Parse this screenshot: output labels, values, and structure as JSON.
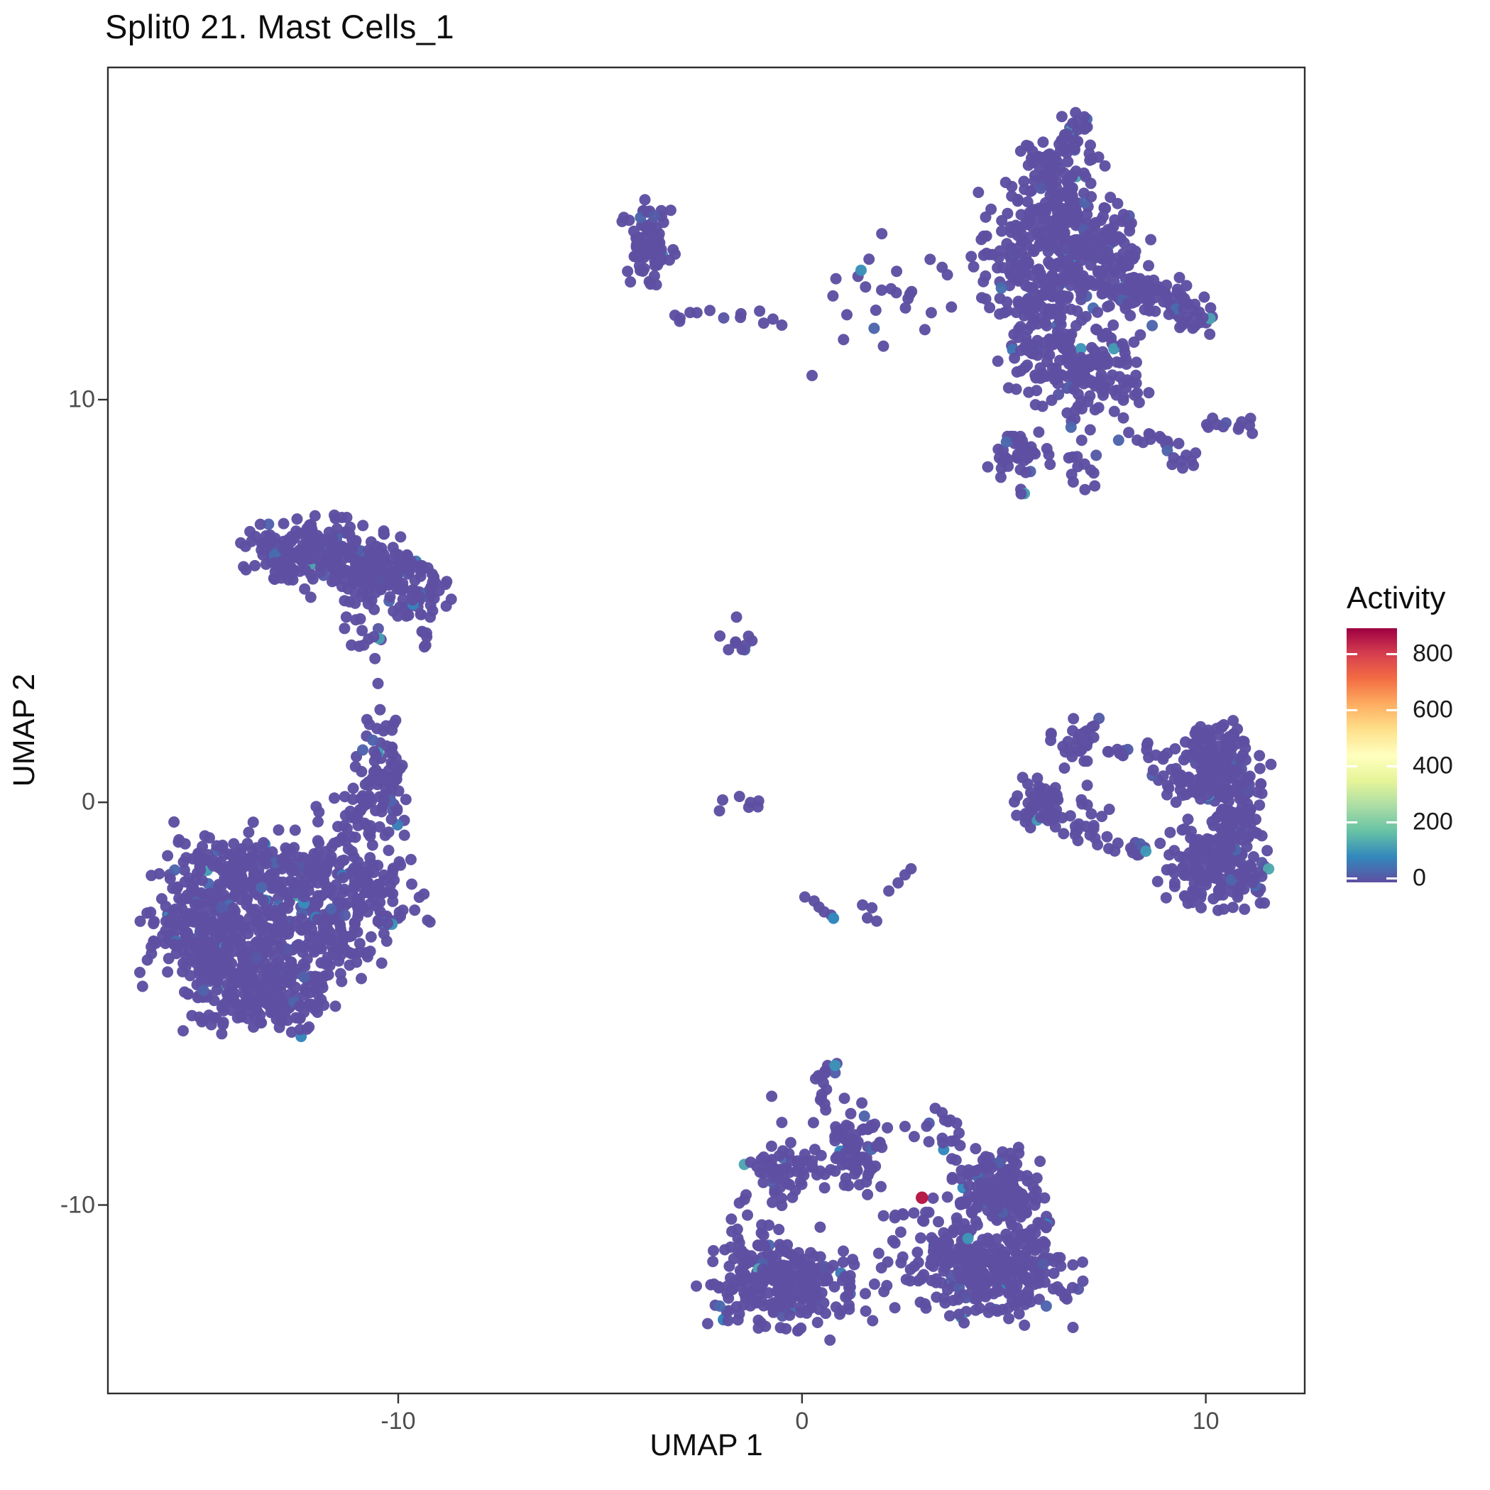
{
  "chart": {
    "title": "Split0 21. Mast Cells_1",
    "xlabel": "UMAP 1",
    "ylabel": "UMAP 2"
  },
  "legend": {
    "title": "Activity",
    "tick_values": [
      800,
      600,
      400,
      200,
      0
    ],
    "domain": [
      0,
      890
    ],
    "gradient_stops": [
      "#5E4FA2",
      "#3288BD",
      "#66C2A5",
      "#ABDDA4",
      "#E6F598",
      "#FFFFBF",
      "#FEE08B",
      "#FDAE61",
      "#F46D43",
      "#D53E4F",
      "#9E0142"
    ]
  },
  "chart_data": {
    "type": "scatter",
    "title": "Split0 21. Mast Cells_1",
    "xlabel": "UMAP 1",
    "ylabel": "UMAP 2",
    "color_label": "Activity",
    "x_ticks": [
      -10,
      0,
      10
    ],
    "y_ticks": [
      -10,
      0,
      10
    ],
    "x_range": [
      -17.19,
      12.45
    ],
    "y_range": [
      -14.68,
      18.25
    ],
    "grid": false,
    "background_activity": 0,
    "point_color_zero": "#5E4FA2",
    "max_point": {
      "x": 2.97,
      "y": -9.82,
      "activity": 850
    },
    "low_activity_point": {
      "x": 0.78,
      "y": -2.88,
      "activity": 90
    },
    "clusters": [
      {
        "name": "top-right-tip",
        "cx": 6.65,
        "cy": 16.5,
        "sx": 0.3,
        "sy": 0.4,
        "n": 28,
        "rot": 0
      },
      {
        "name": "top-right-upper",
        "cx": 6.45,
        "cy": 15.1,
        "sx": 0.55,
        "sy": 0.7,
        "n": 150,
        "rot": 10
      },
      {
        "name": "top-right-mid",
        "cx": 6.05,
        "cy": 13.3,
        "sx": 0.8,
        "sy": 0.95,
        "n": 250,
        "rot": 12
      },
      {
        "name": "top-right-mid-right",
        "cx": 7.5,
        "cy": 13.6,
        "sx": 0.5,
        "sy": 0.55,
        "n": 90,
        "rot": 0
      },
      {
        "name": "top-right-arm",
        "cx": 8.6,
        "cy": 12.55,
        "sx": 0.6,
        "sy": 0.3,
        "n": 85,
        "rot": -8
      },
      {
        "name": "top-right-arm-tip",
        "cx": 9.8,
        "cy": 12.1,
        "sx": 0.3,
        "sy": 0.35,
        "n": 20,
        "rot": 0
      },
      {
        "name": "top-right-lower",
        "cx": 7.0,
        "cy": 10.75,
        "sx": 0.75,
        "sy": 0.6,
        "n": 155,
        "rot": -10
      },
      {
        "name": "top-right-lower-left",
        "cx": 5.7,
        "cy": 11.5,
        "sx": 0.45,
        "sy": 0.55,
        "n": 50,
        "rot": 0
      },
      {
        "name": "top-right-foot-left",
        "cx": 5.3,
        "cy": 8.6,
        "sx": 0.38,
        "sy": 0.38,
        "n": 40,
        "rot": 0
      },
      {
        "name": "top-right-foot-mid",
        "cx": 6.85,
        "cy": 8.3,
        "sx": 0.22,
        "sy": 0.33,
        "n": 13,
        "rot": 0
      },
      {
        "name": "top-right-foot-chain",
        "cx": 8.55,
        "cy": 9.1,
        "sx": 0.4,
        "sy": 0.14,
        "n": 10,
        "rot": 0
      },
      {
        "name": "top-right-far-chain",
        "cx": 10.6,
        "cy": 9.4,
        "sx": 0.5,
        "sy": 0.12,
        "n": 12,
        "rot": -6
      },
      {
        "name": "top-right-foot-right",
        "cx": 9.4,
        "cy": 8.55,
        "sx": 0.28,
        "sy": 0.28,
        "n": 12,
        "rot": 0
      },
      {
        "name": "top-right-left-fringe",
        "cx": 1.7,
        "cy": 12.7,
        "sx": 0.8,
        "sy": 0.75,
        "n": 24,
        "rot": 0
      },
      {
        "name": "top-mid-blob",
        "cx": -3.85,
        "cy": 13.85,
        "sx": 0.3,
        "sy": 0.52,
        "n": 80,
        "rot": 0
      },
      {
        "name": "top-mid-chain",
        "cx": -2.6,
        "cy": 12.1,
        "sx": 0.5,
        "sy": 0.09,
        "n": 9,
        "rot": 0
      },
      {
        "name": "left-upper-a",
        "cx": -12.75,
        "cy": 6.3,
        "sx": 0.5,
        "sy": 0.42,
        "n": 80,
        "rot": -10
      },
      {
        "name": "left-upper-b",
        "cx": -11.4,
        "cy": 6.05,
        "sx": 0.75,
        "sy": 0.45,
        "n": 160,
        "rot": -10
      },
      {
        "name": "left-upper-c",
        "cx": -10.05,
        "cy": 5.55,
        "sx": 0.55,
        "sy": 0.42,
        "n": 100,
        "rot": -12
      },
      {
        "name": "left-upper-tip",
        "cx": -9.2,
        "cy": 5.2,
        "sx": 0.3,
        "sy": 0.3,
        "n": 28,
        "rot": 0
      },
      {
        "name": "left-upper-tail",
        "cx": -11.0,
        "cy": 4.35,
        "sx": 0.3,
        "sy": 0.5,
        "n": 18,
        "rot": 0
      },
      {
        "name": "left-upper-pair",
        "cx": -9.35,
        "cy": 4.0,
        "sx": 0.28,
        "sy": 0.2,
        "n": 6,
        "rot": 0
      },
      {
        "name": "left-arm-top",
        "cx": -10.35,
        "cy": 1.55,
        "sx": 0.22,
        "sy": 0.3,
        "n": 16,
        "rot": 0
      },
      {
        "name": "left-arm-mid",
        "cx": -10.25,
        "cy": 0.75,
        "sx": 0.35,
        "sy": 0.3,
        "n": 40,
        "rot": 0
      },
      {
        "name": "left-arm-low",
        "cx": -10.8,
        "cy": -0.3,
        "sx": 0.45,
        "sy": 0.35,
        "n": 60,
        "rot": 20
      },
      {
        "name": "left-main-a",
        "cx": -14.35,
        "cy": -1.7,
        "sx": 0.75,
        "sy": 0.5,
        "n": 130,
        "rot": 0
      },
      {
        "name": "left-main-b",
        "cx": -12.6,
        "cy": -1.85,
        "sx": 0.8,
        "sy": 0.55,
        "n": 150,
        "rot": 0
      },
      {
        "name": "left-main-c",
        "cx": -11.0,
        "cy": -2.0,
        "sx": 0.6,
        "sy": 0.5,
        "n": 95,
        "rot": 0
      },
      {
        "name": "left-main-d",
        "cx": -15.05,
        "cy": -3.3,
        "sx": 0.65,
        "sy": 0.6,
        "n": 170,
        "rot": 0
      },
      {
        "name": "left-main-e",
        "cx": -13.2,
        "cy": -3.6,
        "sx": 0.85,
        "sy": 0.65,
        "n": 185,
        "rot": 0
      },
      {
        "name": "left-main-f",
        "cx": -11.55,
        "cy": -3.4,
        "sx": 0.55,
        "sy": 0.5,
        "n": 85,
        "rot": 0
      },
      {
        "name": "left-main-g",
        "cx": -14.2,
        "cy": -4.75,
        "sx": 0.6,
        "sy": 0.45,
        "n": 110,
        "rot": 0
      },
      {
        "name": "left-main-h",
        "cx": -12.7,
        "cy": -5.0,
        "sx": 0.55,
        "sy": 0.4,
        "n": 75,
        "rot": 0
      },
      {
        "name": "left-main-tip",
        "cx": -9.95,
        "cy": -2.65,
        "sx": 0.3,
        "sy": 0.3,
        "n": 20,
        "rot": 0
      },
      {
        "name": "center-blob",
        "cx": -1.65,
        "cy": 4.1,
        "sx": 0.24,
        "sy": 0.24,
        "n": 10,
        "rot": 0
      },
      {
        "name": "center-row",
        "cx": -1.35,
        "cy": 0.0,
        "sx": 0.38,
        "sy": 0.09,
        "n": 7,
        "rot": 0
      },
      {
        "name": "right-ring-tl",
        "cx": 6.8,
        "cy": 1.45,
        "sx": 0.26,
        "sy": 0.3,
        "n": 30,
        "rot": 0
      },
      {
        "name": "right-ring-top-chain",
        "cx": 8.2,
        "cy": 1.3,
        "sx": 0.55,
        "sy": 0.11,
        "n": 13,
        "rot": 0
      },
      {
        "name": "right-ring-rt",
        "cx": 10.2,
        "cy": 1.6,
        "sx": 0.4,
        "sy": 0.22,
        "n": 35,
        "rot": 0
      },
      {
        "name": "right-ring-main",
        "cx": 10.15,
        "cy": 0.7,
        "sx": 0.6,
        "sy": 0.45,
        "n": 165,
        "rot": 0
      },
      {
        "name": "right-ring-col",
        "cx": 10.75,
        "cy": -0.35,
        "sx": 0.28,
        "sy": 0.4,
        "n": 55,
        "rot": 0
      },
      {
        "name": "right-ring-left",
        "cx": 5.95,
        "cy": 0.0,
        "sx": 0.33,
        "sy": 0.38,
        "n": 60,
        "rot": 0
      },
      {
        "name": "right-ring-mid",
        "cx": 7.2,
        "cy": 0.2,
        "sx": 0.28,
        "sy": 0.4,
        "n": 7,
        "rot": 0
      },
      {
        "name": "right-ring-bchain1",
        "cx": 7.0,
        "cy": -0.75,
        "sx": 0.35,
        "sy": 0.17,
        "n": 12,
        "rot": -15
      },
      {
        "name": "right-ring-bchain2",
        "cx": 8.1,
        "cy": -1.1,
        "sx": 0.5,
        "sy": 0.14,
        "n": 14,
        "rot": -8
      },
      {
        "name": "right-ring-br",
        "cx": 10.3,
        "cy": -1.65,
        "sx": 0.62,
        "sy": 0.5,
        "n": 185,
        "rot": -15
      },
      {
        "name": "bottom-top-blob",
        "cx": 0.55,
        "cy": -6.95,
        "sx": 0.2,
        "sy": 0.35,
        "n": 15,
        "rot": 0
      },
      {
        "name": "bottom-upper-mid",
        "cx": 1.25,
        "cy": -8.7,
        "sx": 0.4,
        "sy": 0.5,
        "n": 95,
        "rot": 0
      },
      {
        "name": "bottom-right-top",
        "cx": 3.5,
        "cy": -8.1,
        "sx": 0.3,
        "sy": 0.25,
        "n": 15,
        "rot": 0
      },
      {
        "name": "bottom-right-lobe",
        "cx": 4.85,
        "cy": -9.6,
        "sx": 0.5,
        "sy": 0.45,
        "n": 165,
        "rot": 0
      },
      {
        "name": "bottom-right-ext",
        "cx": 5.6,
        "cy": -10.7,
        "sx": 0.28,
        "sy": 0.38,
        "n": 32,
        "rot": 0
      },
      {
        "name": "bottom-left-lobe",
        "cx": -0.45,
        "cy": -9.2,
        "sx": 0.42,
        "sy": 0.33,
        "n": 60,
        "rot": 0
      },
      {
        "name": "bottom-bl-main",
        "cx": -0.45,
        "cy": -11.9,
        "sx": 0.95,
        "sy": 0.55,
        "n": 280,
        "rot": -8
      },
      {
        "name": "bottom-br-main",
        "cx": 4.55,
        "cy": -11.6,
        "sx": 1.05,
        "sy": 0.6,
        "n": 310,
        "rot": -12
      },
      {
        "name": "bottom-red-chain",
        "cx": 2.4,
        "cy": -10.2,
        "sx": 0.4,
        "sy": 0.09,
        "n": 7,
        "rot": 0
      }
    ],
    "singles": [
      {
        "x": 3.6,
        "y": 13.1
      },
      {
        "x": 4.25,
        "y": 13.3
      },
      {
        "x": 3.7,
        "y": 12.3
      },
      {
        "x": 4.55,
        "y": 12.5
      },
      {
        "x": -1.05,
        "y": 12.2
      },
      {
        "x": -0.72,
        "y": 12.0
      },
      {
        "x": -0.5,
        "y": 11.85
      },
      {
        "x": -0.95,
        "y": 11.9
      },
      {
        "x": 0.25,
        "y": 10.6
      },
      {
        "x": -10.5,
        "y": 2.95
      },
      {
        "x": -10.45,
        "y": 2.3
      },
      {
        "x": -10.3,
        "y": 1.9
      },
      {
        "x": 0.07,
        "y": -2.35
      },
      {
        "x": 0.3,
        "y": -2.45
      },
      {
        "x": 0.42,
        "y": -2.6
      },
      {
        "x": 0.55,
        "y": -2.72
      },
      {
        "x": 0.72,
        "y": -2.8
      },
      {
        "x": 1.5,
        "y": -2.55
      },
      {
        "x": 1.73,
        "y": -2.62
      },
      {
        "x": 1.62,
        "y": -2.87
      },
      {
        "x": 1.85,
        "y": -2.95
      },
      {
        "x": 2.15,
        "y": -2.2
      },
      {
        "x": 2.38,
        "y": -2.0
      },
      {
        "x": 2.55,
        "y": -1.8
      },
      {
        "x": 2.7,
        "y": -1.65
      },
      {
        "x": 6.5,
        "y": 0.85
      },
      {
        "x": 8.7,
        "y": 0.8
      },
      {
        "x": 9.35,
        "y": -1.35
      },
      {
        "x": 11.45,
        "y": -2.5
      },
      {
        "x": 7.6,
        "y": 1.25
      },
      {
        "x": 2.55,
        "y": -8.05
      },
      {
        "x": 2.78,
        "y": -8.3
      },
      {
        "x": 4.3,
        "y": -8.6
      },
      {
        "x": 4.55,
        "y": -8.8
      },
      {
        "x": -0.75,
        "y": -7.3
      },
      {
        "x": -0.5,
        "y": -7.95
      },
      {
        "x": -0.28,
        "y": -8.45
      },
      {
        "x": -1.55,
        "y": -9.95
      },
      {
        "x": -1.35,
        "y": -10.25
      },
      {
        "x": -1.6,
        "y": -10.6
      },
      {
        "x": -1.75,
        "y": -10.35
      },
      {
        "x": 1.9,
        "y": -11.2
      },
      {
        "x": 2.1,
        "y": -12.0
      },
      {
        "x": 2.3,
        "y": -12.55
      },
      {
        "x": 0.45,
        "y": -10.55
      },
      {
        "x": 1.05,
        "y": -7.35
      },
      {
        "x": 3.3,
        "y": -7.6
      }
    ],
    "x_tick_labels": [
      "-10",
      "0",
      "10"
    ],
    "y_tick_labels": [
      "-10",
      "0",
      "10"
    ],
    "legend_tick_labels": [
      "800",
      "600",
      "400",
      "200",
      "0"
    ]
  }
}
